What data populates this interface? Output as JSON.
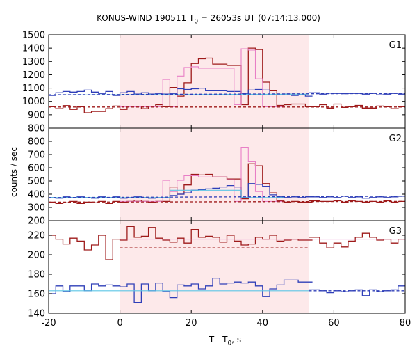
{
  "chart_data": {
    "type": "line",
    "title_parts": {
      "prefix": "KONUS-WIND 190511 T",
      "sub": "0",
      "suffix": " = 26053s UT (07:14:13.000)"
    },
    "xlabel_parts": {
      "prefix": "T - T",
      "sub": "0",
      "suffix": ", s"
    },
    "ylabel": "counts / sec",
    "xlim": [
      -20,
      80
    ],
    "xticks": [
      -20,
      0,
      20,
      40,
      60,
      80
    ],
    "highlight_interval": [
      0,
      53
    ],
    "highlight_color": "#fde9ea",
    "colors": {
      "red": "#9e1a1a",
      "blue": "#2f3fb8",
      "pink": "#e87fc6",
      "cyan": "#5cc6e6"
    },
    "panels": [
      {
        "name": "G1",
        "ylim": [
          800,
          1500
        ],
        "yticks": [
          800,
          900,
          1000,
          1100,
          1200,
          1300,
          1400,
          1500
        ],
        "series": [
          {
            "color": "red",
            "kind": "step",
            "x": [
              -20,
              -18,
              -16,
              -14,
              -12,
              -10,
              -8,
              -6,
              -4,
              -2,
              0,
              2,
              4,
              6,
              8,
              10,
              12,
              14,
              16,
              18,
              20,
              22,
              24,
              26,
              28,
              30,
              32,
              34,
              36,
              38,
              40,
              42,
              44,
              46,
              48,
              50,
              52
            ],
            "y": [
              960,
              945,
              968,
              940,
              960,
              915,
              925,
              925,
              945,
              965,
              940,
              960,
              960,
              945,
              960,
              975,
              960,
              1105,
              1040,
              1140,
              1285,
              1320,
              1325,
              1280,
              1280,
              1270,
              1270,
              975,
              1400,
              1390,
              1145,
              1080,
              970,
              975,
              980,
              980,
              960
            ]
          },
          {
            "color": "red",
            "kind": "step",
            "x": [
              53,
              56,
              58,
              60,
              62,
              64,
              66,
              68,
              70,
              72,
              74,
              76,
              78
            ],
            "y": [
              960,
              975,
              950,
              980,
              955,
              960,
              970,
              950,
              950,
              965,
              960,
              945,
              960
            ]
          },
          {
            "color": "blue",
            "kind": "step",
            "x": [
              -20,
              -18,
              -16,
              -14,
              -12,
              -10,
              -8,
              -6,
              -4,
              -2,
              0,
              2,
              4,
              6,
              8,
              10,
              12,
              14,
              16,
              18,
              20,
              22,
              24,
              26,
              28,
              30,
              32,
              34,
              36,
              38,
              40,
              42,
              44,
              46,
              48,
              50,
              52
            ],
            "y": [
              1045,
              1065,
              1075,
              1070,
              1075,
              1085,
              1070,
              1060,
              1075,
              1045,
              1065,
              1075,
              1055,
              1065,
              1055,
              1060,
              1055,
              1060,
              1095,
              1090,
              1095,
              1100,
              1080,
              1080,
              1080,
              1075,
              1075,
              1060,
              1085,
              1090,
              1085,
              1050,
              1050,
              1055,
              1045,
              1050,
              1040
            ]
          },
          {
            "color": "blue",
            "kind": "step",
            "x": [
              53,
              56,
              58,
              60,
              62,
              64,
              66,
              68,
              70,
              72,
              74,
              76,
              78
            ],
            "y": [
              1065,
              1055,
              1062,
              1060,
              1058,
              1060,
              1060,
              1055,
              1060,
              1050,
              1055,
              1060,
              1055
            ]
          },
          {
            "color": "pink",
            "kind": "step",
            "x": [
              0,
              2,
              4,
              6,
              8,
              10,
              12,
              14,
              16,
              18,
              20,
              22,
              24,
              26,
              28,
              30,
              32,
              34,
              36,
              38,
              40,
              42,
              44
            ],
            "y": [
              960,
              960,
              960,
              960,
              960,
              960,
              1165,
              960,
              1190,
              1255,
              1260,
              1250,
              1250,
              1250,
              1250,
              1250,
              975,
              1395,
              1385,
              1170,
              960,
              960,
              960
            ]
          },
          {
            "color": "cyan",
            "kind": "line",
            "x": [
              -20,
              53
            ],
            "y": [
              1048,
              1055
            ]
          },
          {
            "color": "red",
            "kind": "dashed",
            "x": [
              -20,
              80
            ],
            "y": [
              958,
              958
            ]
          },
          {
            "color": "blue",
            "kind": "dashed",
            "x": [
              -20,
              80
            ],
            "y": [
              1050,
              1060
            ]
          }
        ]
      },
      {
        "name": "G2",
        "ylim": [
          200,
          900
        ],
        "yticks": [
          200,
          300,
          400,
          500,
          600,
          700,
          800
        ],
        "series": [
          {
            "color": "red",
            "kind": "step",
            "x": [
              -20,
              -18,
              -16,
              -14,
              -12,
              -10,
              -8,
              -6,
              -4,
              -2,
              0,
              2,
              4,
              6,
              8,
              10,
              12,
              14,
              16,
              18,
              20,
              22,
              24,
              26,
              28,
              30,
              32,
              34,
              36,
              38,
              40,
              42,
              44,
              46,
              48,
              50,
              52
            ],
            "y": [
              340,
              330,
              335,
              345,
              330,
              340,
              335,
              345,
              330,
              345,
              340,
              345,
              355,
              345,
              340,
              345,
              345,
              455,
              400,
              470,
              550,
              545,
              550,
              530,
              530,
              515,
              515,
              365,
              630,
              615,
              480,
              410,
              350,
              340,
              345,
              340,
              340
            ]
          },
          {
            "color": "red",
            "kind": "step",
            "x": [
              53,
              56,
              58,
              60,
              62,
              64,
              66,
              68,
              70,
              72,
              74,
              76,
              78
            ],
            "y": [
              350,
              345,
              345,
              350,
              340,
              350,
              345,
              340,
              345,
              340,
              350,
              340,
              345
            ]
          },
          {
            "color": "blue",
            "kind": "step",
            "x": [
              -20,
              -18,
              -16,
              -14,
              -12,
              -10,
              -8,
              -6,
              -4,
              -2,
              0,
              2,
              4,
              6,
              8,
              10,
              12,
              14,
              16,
              18,
              20,
              22,
              24,
              26,
              28,
              30,
              32,
              34,
              36,
              38,
              40,
              42,
              44,
              46,
              48,
              50,
              52
            ],
            "y": [
              375,
              370,
              380,
              375,
              380,
              375,
              370,
              380,
              375,
              380,
              370,
              375,
              380,
              375,
              370,
              375,
              375,
              390,
              400,
              410,
              430,
              435,
              440,
              445,
              455,
              465,
              455,
              375,
              480,
              475,
              460,
              395,
              380,
              375,
              380,
              375,
              380
            ]
          },
          {
            "color": "blue",
            "kind": "step",
            "x": [
              53,
              56,
              58,
              60,
              62,
              64,
              66,
              68,
              70,
              72,
              74,
              76,
              78
            ],
            "y": [
              380,
              375,
              380,
              375,
              385,
              375,
              380,
              370,
              375,
              380,
              375,
              380,
              385
            ]
          },
          {
            "color": "pink",
            "kind": "step",
            "x": [
              0,
              2,
              4,
              6,
              8,
              10,
              12,
              14,
              16,
              18,
              20,
              22,
              24,
              26,
              28,
              30,
              32,
              34,
              36,
              38,
              40,
              42,
              44
            ],
            "y": [
              345,
              345,
              345,
              345,
              345,
              345,
              505,
              420,
              505,
              540,
              540,
              530,
              530,
              530,
              530,
              510,
              345,
              755,
              645,
              420,
              345,
              345,
              345
            ]
          },
          {
            "color": "cyan",
            "kind": "step",
            "x": [
              -20,
              12,
              14,
              16,
              18,
              20,
              22,
              24,
              26,
              28,
              30,
              32,
              34,
              36,
              38,
              40,
              42,
              44
            ],
            "y": [
              375,
              375,
              430,
              430,
              430,
              430,
              430,
              430,
              430,
              430,
              430,
              430,
              375,
              375,
              375,
              375,
              375,
              375
            ]
          },
          {
            "color": "red",
            "kind": "dashed",
            "x": [
              -20,
              80
            ],
            "y": [
              340,
              345
            ]
          },
          {
            "color": "blue",
            "kind": "dashed",
            "x": [
              -20,
              80
            ],
            "y": [
              375,
              385
            ]
          }
        ]
      },
      {
        "name": "G3",
        "ylim": [
          140,
          235
        ],
        "yticks": [
          140,
          160,
          180,
          200,
          220
        ],
        "series": [
          {
            "color": "red",
            "kind": "step",
            "x": [
              -20,
              -18,
              -16,
              -14,
              -12,
              -10,
              -8,
              -6,
              -4,
              -2,
              0,
              2,
              4,
              6,
              8,
              10,
              12,
              14,
              16,
              18,
              20,
              22,
              24,
              26,
              28,
              30,
              32,
              34,
              36,
              38,
              40,
              42,
              44,
              46,
              48,
              50,
              52
            ],
            "y": [
              220,
              216,
              211,
              217,
              214,
              205,
              210,
              220,
              195,
              216,
              215,
              229,
              218,
              219,
              228,
              217,
              215,
              213,
              217,
              212,
              226,
              218,
              219,
              218,
              213,
              220,
              214,
              210,
              211,
              218,
              216,
              220,
              214,
              215,
              216,
              215,
              215
            ]
          },
          {
            "color": "red",
            "kind": "step",
            "x": [
              53,
              56,
              58,
              60,
              62,
              64,
              66,
              68,
              70,
              72,
              74,
              76,
              78
            ],
            "y": [
              218,
              212,
              207,
              212,
              208,
              214,
              218,
              222,
              218,
              215,
              216,
              212,
              216
            ]
          },
          {
            "color": "blue",
            "kind": "step",
            "x": [
              -20,
              -18,
              -16,
              -14,
              -12,
              -10,
              -8,
              -6,
              -4,
              -2,
              0,
              2,
              4,
              6,
              8,
              10,
              12,
              14,
              16,
              18,
              20,
              22,
              24,
              26,
              28,
              30,
              32,
              34,
              36,
              38,
              40,
              42,
              44,
              46,
              48,
              50,
              52
            ],
            "y": [
              160,
              168,
              162,
              168,
              168,
              163,
              170,
              168,
              169,
              168,
              167,
              170,
              151,
              170,
              163,
              171,
              162,
              156,
              169,
              168,
              170,
              165,
              168,
              176,
              170,
              171,
              172,
              171,
              172,
              168,
              157,
              165,
              169,
              174,
              174,
              172,
              172
            ]
          },
          {
            "color": "blue",
            "kind": "step",
            "x": [
              53,
              56,
              58,
              60,
              62,
              64,
              66,
              68,
              70,
              72,
              74,
              76,
              78
            ],
            "y": [
              164,
              163,
              161,
              163,
              162,
              163,
              164,
              158,
              164,
              162,
              163,
              164,
              168
            ]
          },
          {
            "color": "pink",
            "kind": "line",
            "x": [
              0,
              80
            ],
            "y": [
              216,
              216
            ]
          },
          {
            "color": "cyan",
            "kind": "line",
            "x": [
              -20,
              53
            ],
            "y": [
              163,
              163
            ]
          },
          {
            "color": "red",
            "kind": "dashed",
            "x": [
              0,
              53
            ],
            "y": [
              207,
              207
            ]
          },
          {
            "color": "blue",
            "kind": "dashed",
            "x": [
              53,
              80
            ],
            "y": [
              163,
              163
            ]
          }
        ]
      }
    ]
  }
}
